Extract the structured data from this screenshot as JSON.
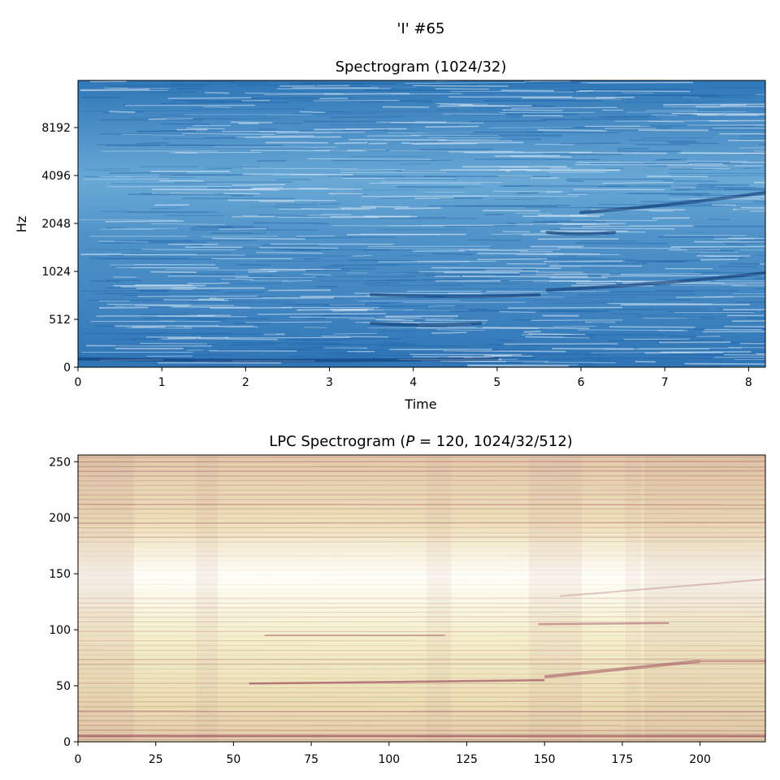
{
  "suptitle": "'I' #65",
  "chart_data": [
    {
      "type": "heatmap",
      "title": "Spectrogram (1024/32)",
      "xlabel": "Time",
      "ylabel": "Hz",
      "x_ticks": [
        "0",
        "1",
        "2",
        "3",
        "4",
        "5",
        "6",
        "7",
        "8"
      ],
      "y_ticks": [
        "0",
        "512",
        "1024",
        "2048",
        "4096",
        "8192"
      ],
      "xlim": [
        0,
        8.2
      ],
      "ylim": [
        0,
        22050
      ],
      "colormap": "Blues",
      "color_light": "#deebf7",
      "color_dark": "#08306b",
      "features": [
        {
          "desc": "low band",
          "x": [
            0,
            5.0
          ],
          "y": 90
        },
        {
          "desc": "band",
          "x": [
            3.5,
            5.5
          ],
          "y": 730
        },
        {
          "desc": "band",
          "x": [
            3.5,
            4.8
          ],
          "y": 470
        },
        {
          "desc": "rising formant",
          "x": [
            5.6,
            8.2
          ],
          "y": [
            780,
            1000
          ]
        },
        {
          "desc": "band",
          "x": [
            5.6,
            6.4
          ],
          "y": 1800
        },
        {
          "desc": "rising formant",
          "x": [
            6.0,
            8.2
          ],
          "y": [
            2400,
            3200
          ]
        }
      ]
    },
    {
      "type": "heatmap",
      "title": "LPC Spectrogram (P = 120, 1024/32/512)",
      "xlabel": "",
      "ylabel": "",
      "x_ticks": [
        "0",
        "25",
        "50",
        "75",
        "100",
        "125",
        "150",
        "175",
        "200"
      ],
      "y_ticks": [
        "0",
        "50",
        "100",
        "150",
        "200",
        "250"
      ],
      "xlim": [
        0,
        221
      ],
      "ylim": [
        0,
        256
      ],
      "colormap": "pink_r",
      "color_light": "#fffff8",
      "color_dark": "#a05060"
    }
  ]
}
